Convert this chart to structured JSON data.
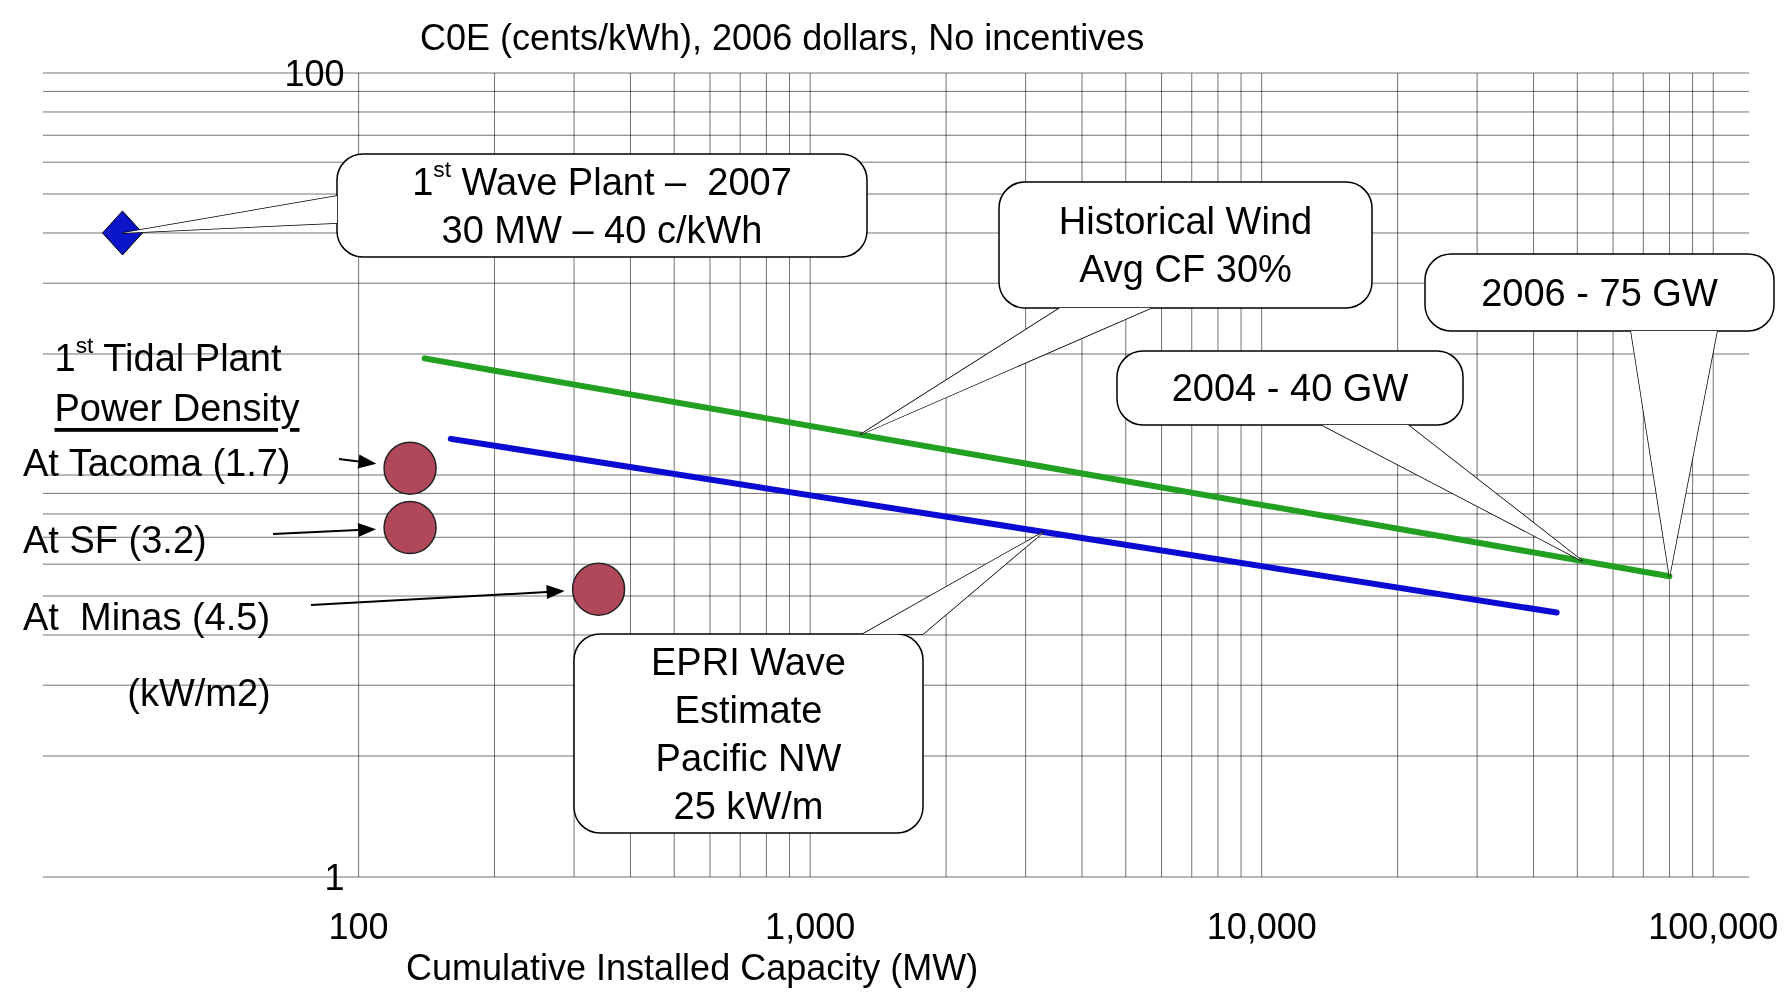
{
  "chart_data": {
    "type": "line",
    "title": "C0E (cents/kWh), 2006 dollars, No incentives",
    "xlabel": "Cumulative Installed Capacity (MW)",
    "log": "xy",
    "grid": true,
    "xlim": [
      20,
      120000
    ],
    "ylim": [
      1,
      100
    ],
    "xticks": [
      100,
      {
        "value": 200,
        "label": null
      },
      {
        "value": 300,
        "label": null
      },
      {
        "value": 400,
        "label": null
      },
      {
        "value": 500,
        "label": null
      },
      {
        "value": 600,
        "label": null
      },
      {
        "value": 700,
        "label": null
      },
      {
        "value": 800,
        "label": null
      },
      {
        "value": 900,
        "label": null
      },
      {
        "value": 1000,
        "label": "1,000"
      },
      {
        "value": 2000,
        "label": null
      },
      {
        "value": 3000,
        "label": null
      },
      {
        "value": 4000,
        "label": null
      },
      {
        "value": 5000,
        "label": null
      },
      {
        "value": 6000,
        "label": null
      },
      {
        "value": 7000,
        "label": null
      },
      {
        "value": 8000,
        "label": null
      },
      {
        "value": 9000,
        "label": null
      },
      {
        "value": 10000,
        "label": "10,000"
      },
      {
        "value": 20000,
        "label": null
      },
      {
        "value": 30000,
        "label": null
      },
      {
        "value": 40000,
        "label": null
      },
      {
        "value": 50000,
        "label": null
      },
      {
        "value": 60000,
        "label": null
      },
      {
        "value": 70000,
        "label": null
      },
      {
        "value": 80000,
        "label": null
      },
      {
        "value": 90000,
        "label": null
      },
      {
        "value": 100000,
        "label": "100,000"
      }
    ],
    "yticks": [
      1,
      {
        "value": 2,
        "label": null
      },
      {
        "value": 3,
        "label": null
      },
      {
        "value": 4,
        "label": null
      },
      {
        "value": 5,
        "label": null
      },
      {
        "value": 6,
        "label": null
      },
      {
        "value": 7,
        "label": null
      },
      {
        "value": 8,
        "label": null
      },
      {
        "value": 9,
        "label": null
      },
      {
        "value": 10,
        "label": null
      },
      {
        "value": 20,
        "label": null
      },
      {
        "value": 30,
        "label": null
      },
      {
        "value": 40,
        "label": null
      },
      {
        "value": 50,
        "label": null
      },
      {
        "value": 60,
        "label": null
      },
      {
        "value": 70,
        "label": null
      },
      {
        "value": 80,
        "label": null
      },
      {
        "value": 90,
        "label": null
      },
      100
    ],
    "series": [
      {
        "color": "#22a022",
        "x": [
          140,
          80000
        ],
        "values": [
          19.5,
          5.6
        ]
      },
      {
        "color": "#0a0ad2",
        "x": [
          160,
          45000
        ],
        "values": [
          12.3,
          4.55
        ]
      },
      {
        "type": "scatter",
        "color": "#0a14c8",
        "marker": "diamond",
        "x": [
          30
        ],
        "values": [
          40
        ]
      },
      {
        "type": "scatter",
        "color": "#b0485a",
        "marker": "circle",
        "x": [
          130,
          130,
          340
        ],
        "values": [
          10.4,
          7.4,
          5.2
        ]
      }
    ],
    "annotations": [
      "1$^{st}$ Wave Plant –  2007\n30 MW – 40 c/kWh",
      "Historical Wind\nAvg CF 30%",
      "2006 - 75 GW",
      "2004 - 40 GW",
      "EPRI Wave\nEstimate\nPacific NW\n25 kW/m",
      "1$^{st}$ Tidal Plant",
      "Power Density",
      "At Tacoma (1.7)",
      "At SF (3.2)",
      "At  Minas (4.5)",
      "(kW/m2)"
    ]
  }
}
